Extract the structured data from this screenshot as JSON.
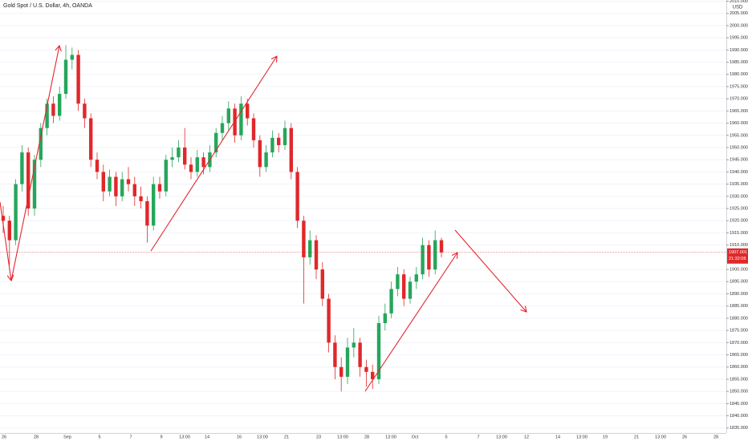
{
  "chart_data": {
    "type": "candlestick",
    "title": "Gold Spot / U.S. Dollar, 4h, OANDA",
    "currency": "USD",
    "up_color": "#26a65b",
    "down_color": "#e0282a",
    "last_price": 1907.001,
    "countdown": "21:32:08",
    "ylim": [
      1834.6,
      2010.5
    ],
    "yticks": [
      {
        "value": 1835,
        "label": "1835.000"
      },
      {
        "value": 1840,
        "label": "1840.000"
      },
      {
        "value": 1845,
        "label": "1845.000"
      },
      {
        "value": 1850,
        "label": "1850.000"
      },
      {
        "value": 1855,
        "label": "1855.000"
      },
      {
        "value": 1860,
        "label": "1860.000"
      },
      {
        "value": 1865,
        "label": "1865.000"
      },
      {
        "value": 1870,
        "label": "1870.000"
      },
      {
        "value": 1875,
        "label": "1875.000"
      },
      {
        "value": 1880,
        "label": "1880.000"
      },
      {
        "value": 1885,
        "label": "1885.000"
      },
      {
        "value": 1890,
        "label": "1890.000"
      },
      {
        "value": 1895,
        "label": "1895.000"
      },
      {
        "value": 1900,
        "label": "1900.000"
      },
      {
        "value": 1910,
        "label": "1910.000"
      },
      {
        "value": 1915,
        "label": "1915.000"
      },
      {
        "value": 1920,
        "label": "1920.000"
      },
      {
        "value": 1925,
        "label": "1925.000"
      },
      {
        "value": 1930,
        "label": "1930.000"
      },
      {
        "value": 1935,
        "label": "1935.000"
      },
      {
        "value": 1940,
        "label": "1940.000"
      },
      {
        "value": 1945,
        "label": "1945.000"
      },
      {
        "value": 1950,
        "label": "1950.000"
      },
      {
        "value": 1955,
        "label": "1955.000"
      },
      {
        "value": 1960,
        "label": "1960.000"
      },
      {
        "value": 1965,
        "label": "1965.000"
      },
      {
        "value": 1970,
        "label": "1970.000"
      },
      {
        "value": 1975,
        "label": "1975.000"
      },
      {
        "value": 1980,
        "label": "1980.000"
      },
      {
        "value": 1985,
        "label": "1985.000"
      },
      {
        "value": 1990,
        "label": "1990.000"
      },
      {
        "value": 1995,
        "label": "1995.000"
      },
      {
        "value": 2000,
        "label": "2000.000"
      },
      {
        "value": 2005,
        "label": "2005.000"
      },
      {
        "value": 2010,
        "label": "2010.000"
      }
    ],
    "x_axis_labels": [
      "26",
      "28",
      "Sep",
      "5",
      "7",
      "9",
      "13:00",
      "14",
      "16",
      "13:00",
      "21",
      "23",
      "13:00",
      "28",
      "13:00",
      "Oct",
      "5",
      "7",
      "13:00",
      "12",
      "14",
      "13:00",
      "19",
      "21",
      "13:00",
      "26",
      "28"
    ],
    "ohlc": [
      [
        1922,
        1926,
        1915,
        1920
      ],
      [
        1920,
        1922,
        1902,
        1912
      ],
      [
        1912,
        1937,
        1910,
        1935
      ],
      [
        1935,
        1951,
        1932,
        1948
      ],
      [
        1948,
        1950,
        1922,
        1925
      ],
      [
        1925,
        1947,
        1922,
        1945
      ],
      [
        1945,
        1960,
        1942,
        1958
      ],
      [
        1958,
        1970,
        1955,
        1968
      ],
      [
        1968,
        1971,
        1960,
        1963
      ],
      [
        1963,
        1975,
        1961,
        1972
      ],
      [
        1972,
        1992,
        1970,
        1986
      ],
      [
        1986,
        1991,
        1982,
        1988
      ],
      [
        1988,
        1990,
        1965,
        1968
      ],
      [
        1968,
        1970,
        1958,
        1962
      ],
      [
        1962,
        1964,
        1942,
        1945
      ],
      [
        1945,
        1948,
        1937,
        1940
      ],
      [
        1940,
        1943,
        1928,
        1932
      ],
      [
        1932,
        1941,
        1930,
        1938
      ],
      [
        1938,
        1940,
        1926,
        1930
      ],
      [
        1930,
        1940,
        1928,
        1937
      ],
      [
        1937,
        1942,
        1932,
        1935
      ],
      [
        1935,
        1938,
        1926,
        1930
      ],
      [
        1930,
        1934,
        1925,
        1928
      ],
      [
        1928,
        1930,
        1911,
        1918
      ],
      [
        1918,
        1938,
        1916,
        1935
      ],
      [
        1935,
        1938,
        1929,
        1932
      ],
      [
        1932,
        1947,
        1930,
        1945
      ],
      [
        1945,
        1950,
        1942,
        1946
      ],
      [
        1946,
        1953,
        1944,
        1950
      ],
      [
        1950,
        1958,
        1941,
        1943
      ],
      [
        1943,
        1946,
        1937,
        1940
      ],
      [
        1940,
        1949,
        1938,
        1946
      ],
      [
        1946,
        1948,
        1939,
        1942
      ],
      [
        1942,
        1951,
        1940,
        1948
      ],
      [
        1948,
        1958,
        1946,
        1956
      ],
      [
        1956,
        1963,
        1953,
        1960
      ],
      [
        1960,
        1969,
        1957,
        1966
      ],
      [
        1966,
        1968,
        1952,
        1955
      ],
      [
        1955,
        1971,
        1953,
        1968
      ],
      [
        1968,
        1970,
        1959,
        1962
      ],
      [
        1962,
        1964,
        1950,
        1953
      ],
      [
        1953,
        1955,
        1938,
        1942
      ],
      [
        1942,
        1951,
        1940,
        1948
      ],
      [
        1948,
        1957,
        1946,
        1954
      ],
      [
        1954,
        1956,
        1948,
        1951
      ],
      [
        1951,
        1961,
        1949,
        1958
      ],
      [
        1958,
        1960,
        1937,
        1940
      ],
      [
        1940,
        1942,
        1917,
        1920
      ],
      [
        1920,
        1922,
        1886,
        1905
      ],
      [
        1905,
        1916,
        1902,
        1912
      ],
      [
        1912,
        1914,
        1896,
        1900
      ],
      [
        1900,
        1903,
        1885,
        1888
      ],
      [
        1888,
        1890,
        1866,
        1870
      ],
      [
        1870,
        1873,
        1855,
        1860
      ],
      [
        1860,
        1864,
        1850,
        1856
      ],
      [
        1856,
        1872,
        1853,
        1868
      ],
      [
        1868,
        1876,
        1864,
        1870
      ],
      [
        1870,
        1872,
        1856,
        1860
      ],
      [
        1860,
        1863,
        1852,
        1858
      ],
      [
        1858,
        1861,
        1851,
        1855
      ],
      [
        1855,
        1881,
        1853,
        1878
      ],
      [
        1878,
        1886,
        1875,
        1882
      ],
      [
        1882,
        1895,
        1880,
        1892
      ],
      [
        1892,
        1901,
        1889,
        1898
      ],
      [
        1898,
        1900,
        1885,
        1888
      ],
      [
        1888,
        1897,
        1886,
        1895
      ],
      [
        1895,
        1901,
        1892,
        1898
      ],
      [
        1898,
        1913,
        1896,
        1910
      ],
      [
        1910,
        1912,
        1897,
        1900
      ],
      [
        1900,
        1916,
        1898,
        1912
      ],
      [
        1912,
        1913,
        1905,
        1907
      ]
    ]
  }
}
